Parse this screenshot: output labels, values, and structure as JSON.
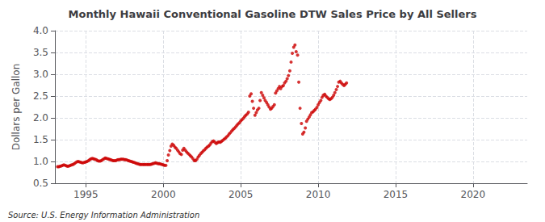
{
  "chart_data": {
    "type": "scatter",
    "title": "Monthly Hawaii Conventional Gasoline DTW Sales Price by All Sellers",
    "ylabel": "Dollars per Gallon",
    "annotations": [
      "Source: U.S. Energy Information Administration"
    ],
    "color": "#cc0000",
    "marker": "dot",
    "grid": true,
    "xlim": [
      1993.0,
      2023.5
    ],
    "xticks": [
      1995,
      2000,
      2005,
      2010,
      2015,
      2020
    ],
    "ylim": [
      0.5,
      4.0
    ],
    "yticks": [
      0.5,
      {
        "value": 1.0,
        "label": "1.0"
      },
      1.5,
      {
        "value": 2.0,
        "label": "2.0"
      },
      2.5,
      {
        "value": 3.0,
        "label": "3.0"
      },
      3.5,
      {
        "value": 4.0,
        "label": "4.0"
      }
    ],
    "x": [
      1993.17,
      1993.25,
      1993.33,
      1993.42,
      1993.5,
      1993.58,
      1993.67,
      1993.75,
      1993.83,
      1993.92,
      1994.0,
      1994.08,
      1994.17,
      1994.25,
      1994.33,
      1994.42,
      1994.5,
      1994.58,
      1994.67,
      1994.75,
      1994.83,
      1994.92,
      1995.0,
      1995.08,
      1995.17,
      1995.25,
      1995.33,
      1995.42,
      1995.5,
      1995.58,
      1995.67,
      1995.75,
      1995.83,
      1995.92,
      1996.0,
      1996.08,
      1996.17,
      1996.25,
      1996.33,
      1996.42,
      1996.5,
      1996.58,
      1996.67,
      1996.75,
      1996.83,
      1996.92,
      1997.0,
      1997.08,
      1997.17,
      1997.25,
      1997.33,
      1997.42,
      1997.5,
      1997.58,
      1997.67,
      1997.75,
      1997.83,
      1997.92,
      1998.0,
      1998.08,
      1998.17,
      1998.25,
      1998.33,
      1998.42,
      1998.5,
      1998.58,
      1998.67,
      1998.75,
      1998.83,
      1998.92,
      1999.0,
      1999.08,
      1999.17,
      1999.25,
      1999.33,
      1999.42,
      1999.5,
      1999.58,
      1999.67,
      1999.75,
      1999.83,
      1999.92,
      2000.0,
      2000.08,
      2000.17,
      2000.25,
      2000.33,
      2000.42,
      2000.5,
      2000.58,
      2000.67,
      2000.75,
      2000.83,
      2000.92,
      2001.0,
      2001.08,
      2001.17,
      2001.25,
      2001.33,
      2001.42,
      2001.5,
      2001.58,
      2001.67,
      2001.75,
      2001.83,
      2001.92,
      2002.0,
      2002.08,
      2002.17,
      2002.25,
      2002.33,
      2002.42,
      2002.5,
      2002.58,
      2002.67,
      2002.75,
      2002.83,
      2002.92,
      2003.0,
      2003.08,
      2003.17,
      2003.25,
      2003.33,
      2003.42,
      2003.5,
      2003.58,
      2003.67,
      2003.75,
      2003.83,
      2003.92,
      2004.0,
      2004.08,
      2004.17,
      2004.25,
      2004.33,
      2004.42,
      2004.5,
      2004.58,
      2004.67,
      2004.75,
      2004.83,
      2004.92,
      2005.0,
      2005.08,
      2005.17,
      2005.25,
      2005.33,
      2005.42,
      2005.5,
      2005.58,
      2005.67,
      2005.75,
      2005.83,
      2005.92,
      2006.0,
      2006.08,
      2006.17,
      2006.25,
      2006.33,
      2006.42,
      2006.5,
      2006.58,
      2006.67,
      2006.75,
      2006.83,
      2006.92,
      2007.0,
      2007.08,
      2007.17,
      2007.25,
      2007.33,
      2007.42,
      2007.5,
      2007.58,
      2007.67,
      2007.75,
      2007.83,
      2007.92,
      2008.0,
      2008.08,
      2008.17,
      2008.25,
      2008.33,
      2008.42,
      2008.5,
      2008.58,
      2008.67,
      2008.75,
      2008.83,
      2008.92,
      2009.0,
      2009.08,
      2009.17,
      2009.25,
      2009.33,
      2009.42,
      2009.5,
      2009.58,
      2009.67,
      2009.75,
      2009.83,
      2009.92,
      2010.0,
      2010.08,
      2010.17,
      2010.25,
      2010.33,
      2010.42,
      2010.5,
      2010.58,
      2010.67,
      2010.75,
      2010.83,
      2010.92,
      2011.0,
      2011.08,
      2011.17,
      2011.25,
      2011.33,
      2011.42,
      2011.5,
      2011.58,
      2011.67,
      2011.75,
      2011.83
    ],
    "values": [
      0.88,
      0.88,
      0.89,
      0.9,
      0.91,
      0.92,
      0.91,
      0.9,
      0.89,
      0.9,
      0.91,
      0.92,
      0.93,
      0.95,
      0.97,
      0.99,
      1.0,
      0.99,
      0.98,
      0.97,
      0.97,
      0.98,
      0.99,
      1.0,
      1.02,
      1.04,
      1.06,
      1.07,
      1.06,
      1.05,
      1.04,
      1.02,
      1.01,
      1.01,
      1.02,
      1.04,
      1.06,
      1.08,
      1.07,
      1.06,
      1.05,
      1.04,
      1.03,
      1.02,
      1.02,
      1.02,
      1.03,
      1.04,
      1.04,
      1.05,
      1.05,
      1.05,
      1.04,
      1.04,
      1.03,
      1.02,
      1.01,
      1.0,
      0.99,
      0.98,
      0.97,
      0.96,
      0.95,
      0.94,
      0.93,
      0.93,
      0.93,
      0.93,
      0.93,
      0.93,
      0.93,
      0.93,
      0.93,
      0.94,
      0.95,
      0.96,
      0.97,
      0.96,
      0.95,
      0.95,
      0.94,
      0.93,
      0.92,
      0.91,
      0.91,
      1.02,
      1.15,
      1.25,
      1.35,
      1.4,
      1.37,
      1.33,
      1.3,
      1.26,
      1.22,
      1.18,
      1.16,
      1.26,
      1.3,
      1.26,
      1.22,
      1.19,
      1.16,
      1.13,
      1.1,
      1.06,
      1.02,
      1.02,
      1.05,
      1.1,
      1.14,
      1.18,
      1.21,
      1.24,
      1.27,
      1.3,
      1.33,
      1.35,
      1.38,
      1.42,
      1.46,
      1.47,
      1.44,
      1.41,
      1.43,
      1.45,
      1.44,
      1.46,
      1.48,
      1.51,
      1.53,
      1.56,
      1.59,
      1.63,
      1.66,
      1.7,
      1.73,
      1.76,
      1.79,
      1.83,
      1.86,
      1.89,
      1.93,
      1.96,
      1.99,
      2.03,
      2.06,
      2.09,
      2.13,
      2.5,
      2.55,
      2.38,
      2.22,
      2.06,
      2.12,
      2.18,
      2.22,
      2.4,
      2.58,
      2.52,
      2.46,
      2.4,
      2.35,
      2.3,
      2.25,
      2.2,
      2.22,
      2.26,
      2.3,
      2.57,
      2.62,
      2.67,
      2.72,
      2.67,
      2.72,
      2.74,
      2.8,
      2.84,
      2.9,
      2.97,
      3.08,
      3.28,
      3.48,
      3.62,
      3.67,
      3.52,
      3.44,
      2.82,
      2.22,
      1.87,
      1.63,
      1.67,
      1.77,
      1.92,
      1.97,
      2.02,
      2.07,
      2.12,
      2.14,
      2.17,
      2.2,
      2.24,
      2.3,
      2.35,
      2.4,
      2.47,
      2.52,
      2.54,
      2.5,
      2.47,
      2.44,
      2.42,
      2.44,
      2.47,
      2.52,
      2.58,
      2.65,
      2.72,
      2.82,
      2.84,
      2.8,
      2.77,
      2.74,
      2.77,
      2.8
    ]
  }
}
